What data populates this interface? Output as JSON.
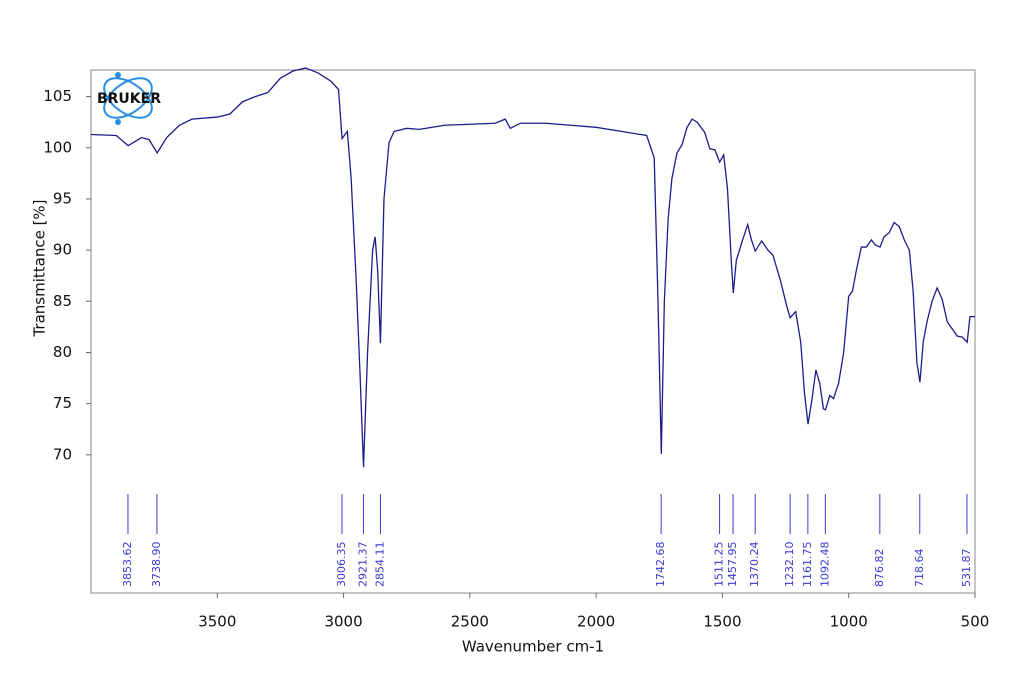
{
  "chart_data": {
    "type": "line",
    "logo": "BRUKER",
    "xlabel": "Wavenumber cm-1",
    "ylabel": "Transmittance [%]",
    "xlim": [
      4000,
      500
    ],
    "ylim": [
      56.5,
      107.6
    ],
    "xticks": [
      3500,
      3000,
      2500,
      2000,
      1500,
      1000,
      500
    ],
    "yticks": [
      70,
      75,
      80,
      85,
      90,
      95,
      100,
      105
    ],
    "grid": false,
    "series": [
      {
        "color": "#1c1c8a",
        "x": [
          4000,
          3900,
          3853,
          3800,
          3770,
          3738,
          3700,
          3650,
          3600,
          3500,
          3450,
          3400,
          3350,
          3300,
          3250,
          3200,
          3150,
          3100,
          3050,
          3020,
          3006,
          2985,
          2970,
          2950,
          2935,
          2921,
          2905,
          2885,
          2875,
          2865,
          2854,
          2840,
          2820,
          2800,
          2750,
          2700,
          2600,
          2500,
          2400,
          2360,
          2340,
          2300,
          2200,
          2100,
          2000,
          1900,
          1800,
          1770,
          1755,
          1742,
          1730,
          1715,
          1700,
          1680,
          1660,
          1640,
          1620,
          1600,
          1570,
          1550,
          1530,
          1511,
          1495,
          1480,
          1465,
          1457,
          1445,
          1420,
          1400,
          1385,
          1370,
          1345,
          1320,
          1300,
          1270,
          1245,
          1232,
          1210,
          1190,
          1175,
          1161,
          1145,
          1130,
          1115,
          1100,
          1092,
          1075,
          1060,
          1040,
          1020,
          1000,
          985,
          970,
          950,
          930,
          910,
          895,
          876,
          860,
          840,
          820,
          800,
          780,
          760,
          745,
          730,
          718,
          705,
          690,
          670,
          650,
          630,
          610,
          590,
          570,
          550,
          531,
          520,
          500
        ],
        "values": [
          101.3,
          101.2,
          100.2,
          101,
          100.8,
          99.5,
          101,
          102.2,
          102.8,
          103,
          103.3,
          104.5,
          105,
          105.4,
          106.8,
          107.5,
          107.8,
          107.3,
          106.5,
          105.7,
          100.9,
          101.6,
          97,
          87,
          78,
          68.8,
          80,
          90,
          91.3,
          88,
          80.9,
          95,
          100.5,
          101.6,
          101.9,
          101.8,
          102.2,
          102.3,
          102.4,
          102.8,
          101.9,
          102.4,
          102.4,
          102.2,
          102,
          101.6,
          101.2,
          99,
          85,
          70.1,
          85,
          93,
          97,
          99.5,
          100.3,
          102,
          102.8,
          102.5,
          101.5,
          99.9,
          99.8,
          98.6,
          99.3,
          96,
          89,
          85.8,
          89,
          91,
          92.5,
          91,
          89.9,
          90.9,
          90,
          89.5,
          87,
          84.5,
          83.4,
          84,
          81,
          76,
          73,
          75.5,
          78.3,
          77,
          74.5,
          74.4,
          75.8,
          75.5,
          77,
          80,
          85.5,
          86,
          88,
          90.3,
          90.3,
          91,
          90.5,
          90.3,
          91.3,
          91.7,
          92.7,
          92.3,
          91,
          90,
          86,
          79,
          77.1,
          81,
          83,
          85,
          86.3,
          85.2,
          83,
          82.3,
          81.6,
          81.5,
          81,
          83.5,
          83.5
        ]
      }
    ],
    "peaks": {
      "color": "#3a3ad0",
      "values": [
        3853.62,
        3738.9,
        3006.35,
        2921.37,
        2854.11,
        1742.68,
        1511.25,
        1457.95,
        1370.24,
        1232.1,
        1161.75,
        1092.48,
        876.82,
        718.64,
        531.87
      ],
      "value_labels": [
        "3853.62",
        "3738.90",
        "3006.35",
        "2921.37",
        "2854.11",
        "1742.68",
        "1511.25",
        "1457.95",
        "1370.24",
        "1232.10",
        "1161.75",
        "1092.48",
        "876.82",
        "718.64",
        "531.87"
      ]
    }
  }
}
